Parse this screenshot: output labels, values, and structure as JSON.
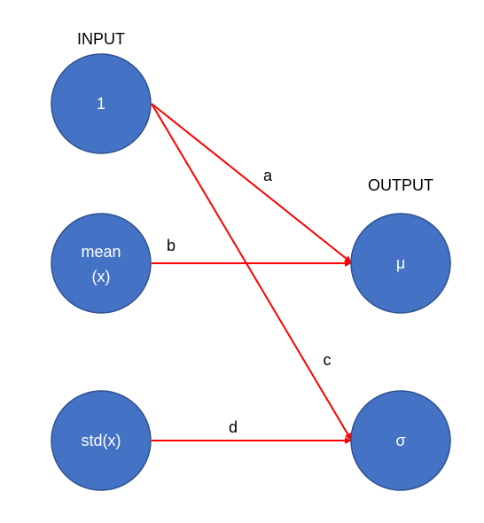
{
  "headings": {
    "input": "INPUT",
    "output": "OUTPUT"
  },
  "nodes": {
    "one": {
      "label": "1"
    },
    "mean": {
      "line1": "mean",
      "line2": "(x)"
    },
    "std": {
      "label": "std(x)"
    },
    "mu": {
      "label": "μ"
    },
    "sigma": {
      "label": "σ"
    }
  },
  "edges": {
    "a": {
      "from": "1",
      "to": "μ",
      "label": "a"
    },
    "b": {
      "from": "mean (x)",
      "to": "μ",
      "label": "b"
    },
    "c": {
      "from": "1",
      "to": "σ",
      "label": "c"
    },
    "d": {
      "from": "std(x)",
      "to": "σ",
      "label": "d"
    }
  },
  "colors": {
    "node_fill": "#4472C4",
    "node_stroke": "#2F528F",
    "edge": "#FF0000",
    "text_dark": "#000000",
    "text_light": "#FFFFFF"
  }
}
